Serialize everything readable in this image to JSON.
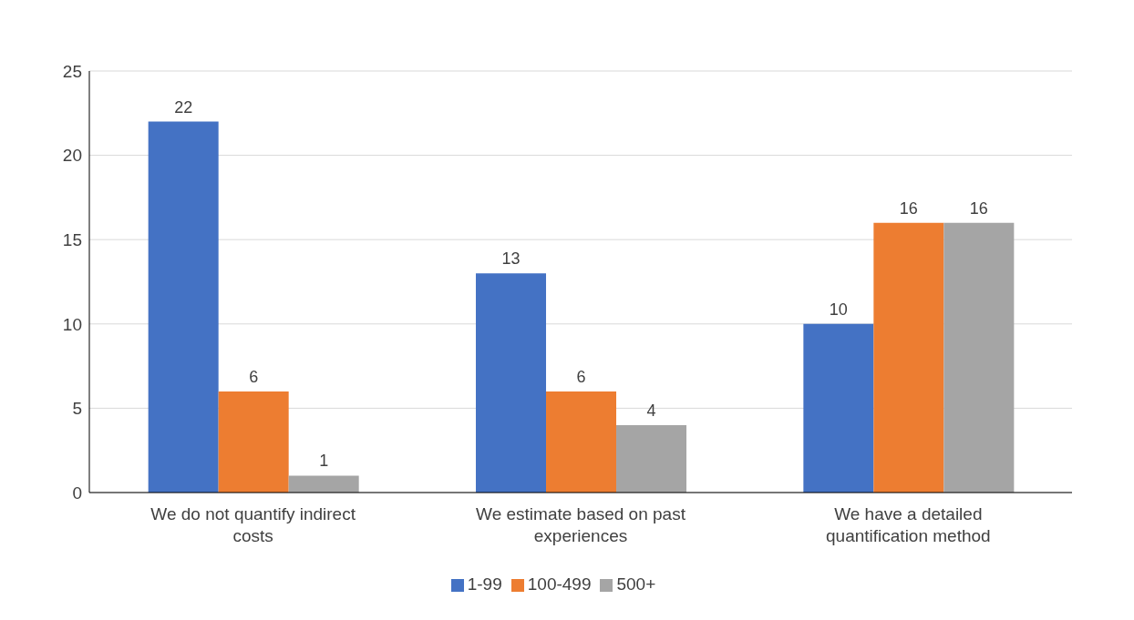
{
  "chart_data": {
    "type": "bar",
    "categories": [
      "We do not quantify indirect costs",
      "We estimate based on past experiences",
      "We have a detailed quantification method"
    ],
    "series": [
      {
        "name": "1-99",
        "color": "#4472c4",
        "values": [
          22,
          13,
          10
        ]
      },
      {
        "name": "100-499",
        "color": "#ed7d31",
        "values": [
          6,
          6,
          16
        ]
      },
      {
        "name": "500+",
        "color": "#a5a5a5",
        "values": [
          1,
          4,
          16
        ]
      }
    ],
    "ylim": [
      0,
      25
    ],
    "yticks": [
      0,
      5,
      10,
      15,
      20,
      25
    ],
    "grid": "y",
    "legend": "bottom",
    "data_labels": true
  }
}
